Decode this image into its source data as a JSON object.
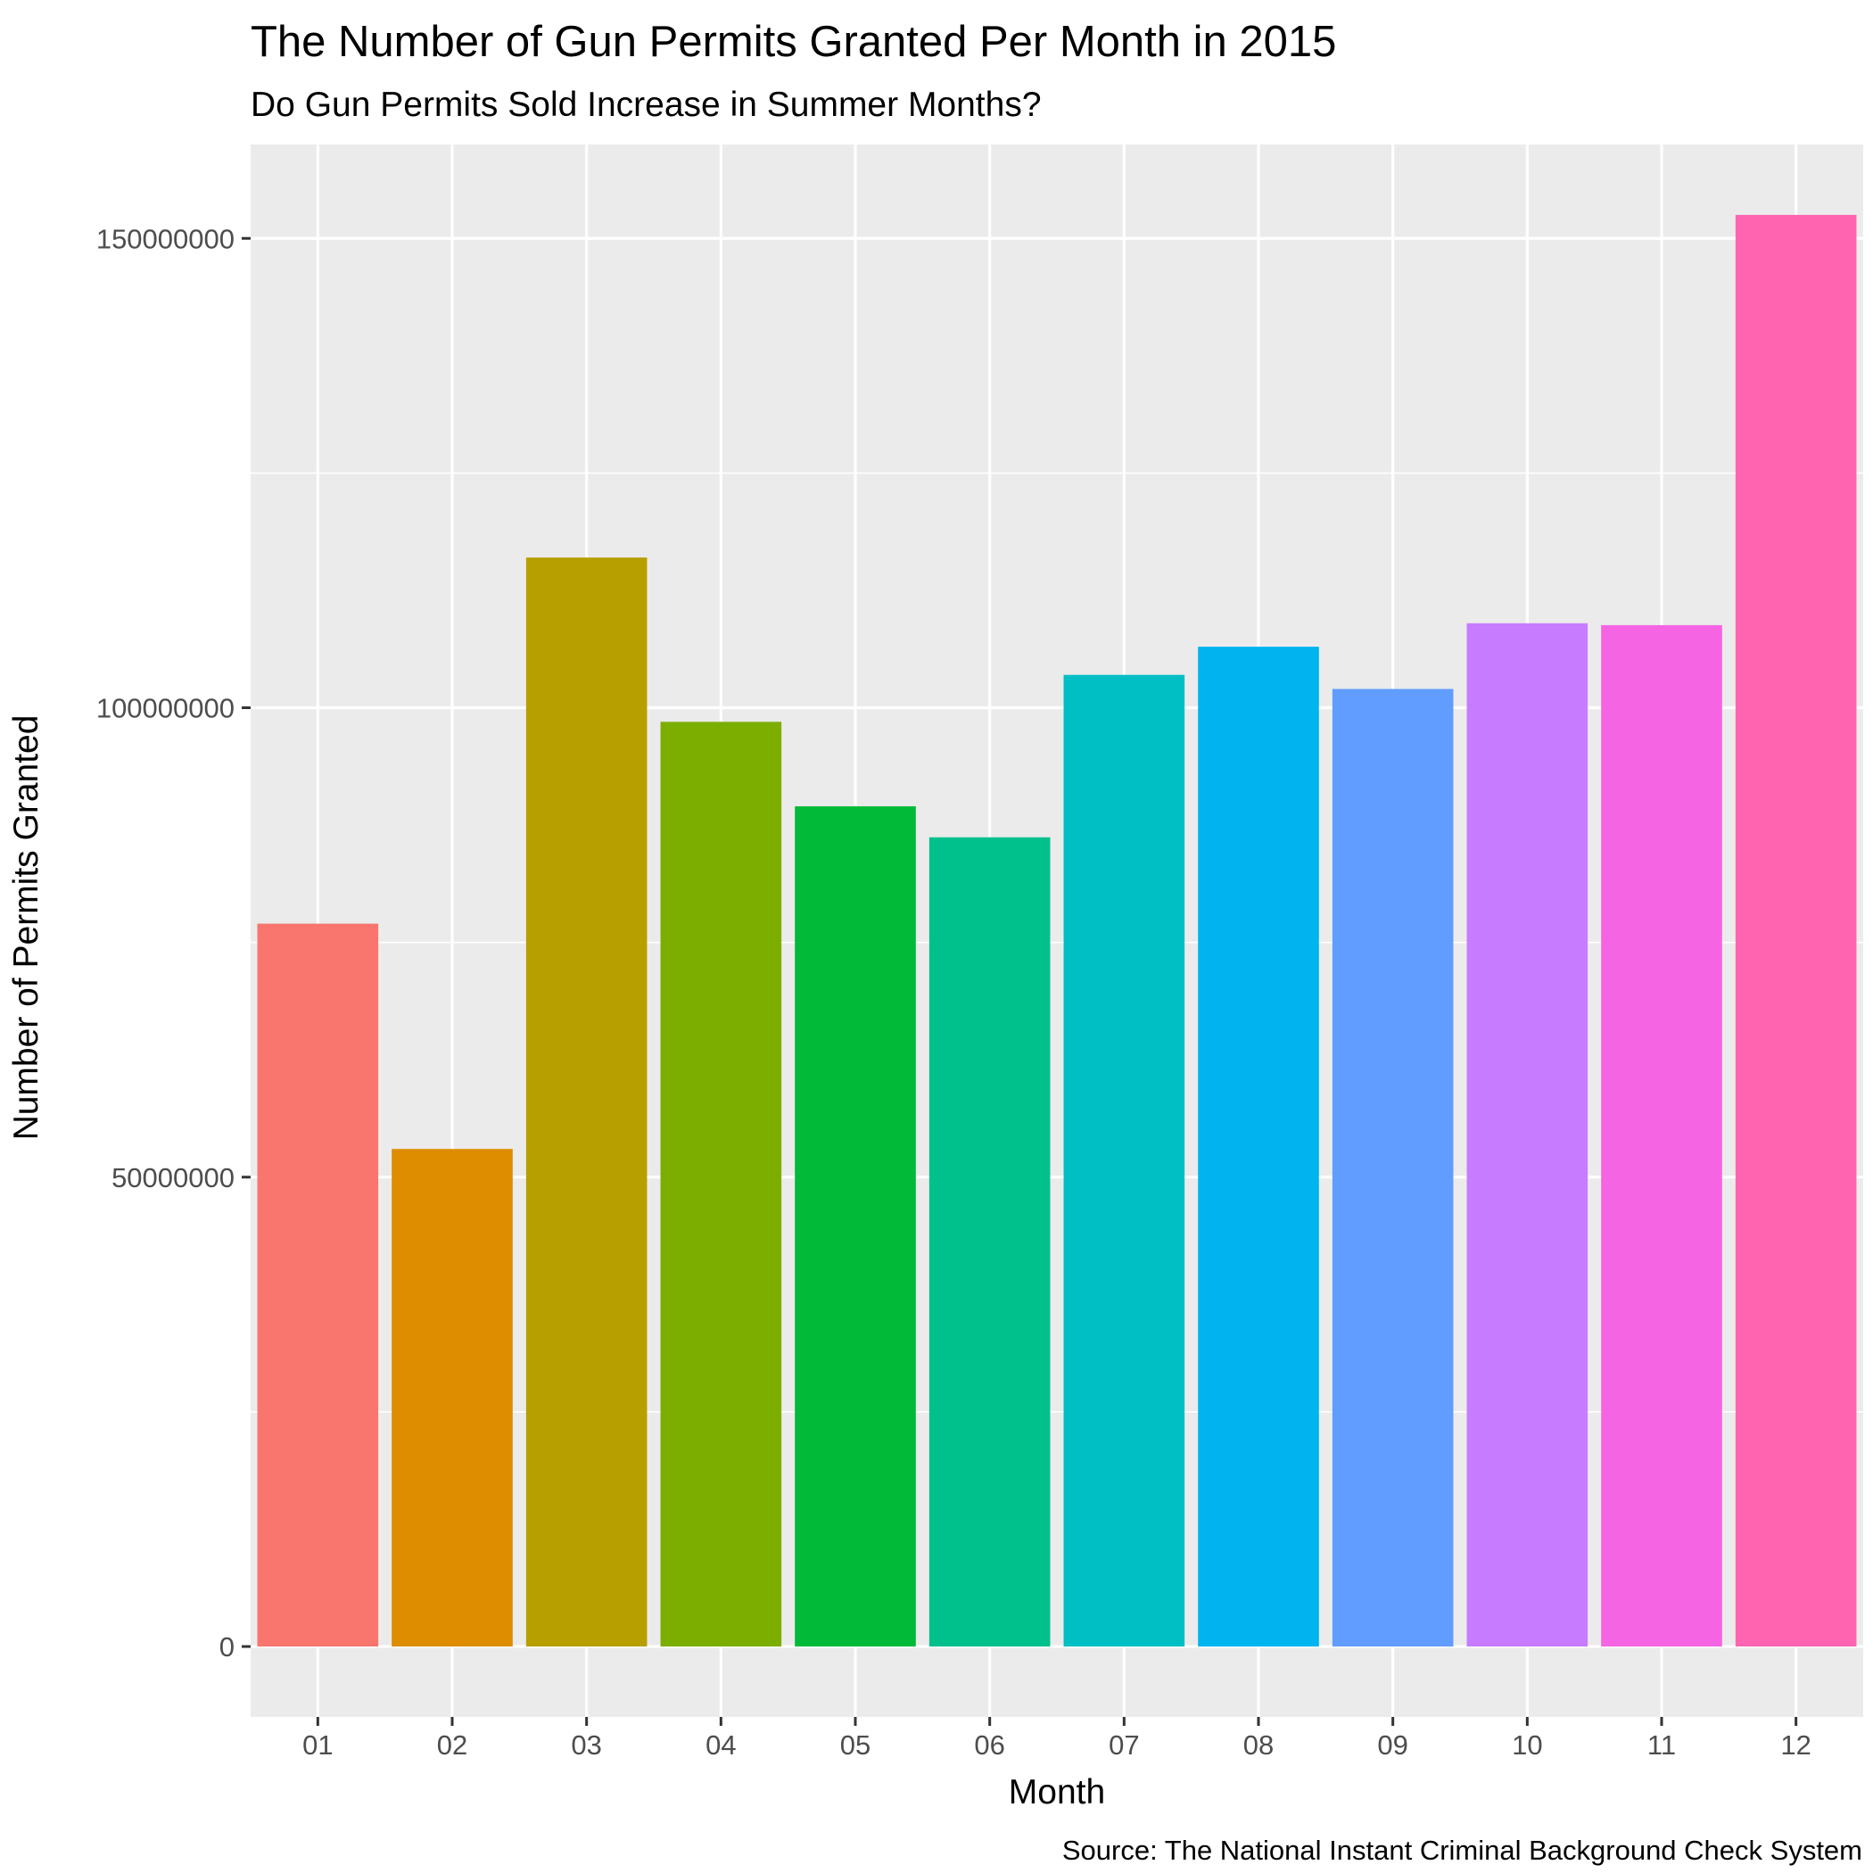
{
  "chart_data": {
    "type": "bar",
    "title": "The Number of Gun Permits Granted Per Month in 2015",
    "subtitle": "Do Gun Permits Sold Increase in Summer Months?",
    "xlabel": "Month",
    "ylabel": "Number of Permits Granted",
    "caption": "Source: The National Instant Criminal Background Check System",
    "categories": [
      "01",
      "02",
      "03",
      "04",
      "05",
      "06",
      "07",
      "08",
      "09",
      "10",
      "11",
      "12"
    ],
    "values": [
      77000000,
      53000000,
      116000000,
      98500000,
      89500000,
      86200000,
      103500000,
      106500000,
      102000000,
      109000000,
      108800000,
      152500000
    ],
    "colors": [
      "#F8766D",
      "#DE8C00",
      "#B79F00",
      "#7CAE00",
      "#00BA38",
      "#00C08B",
      "#00BFC4",
      "#00B4F0",
      "#619CFF",
      "#C77CFF",
      "#F564E3",
      "#FF64B0"
    ],
    "ylim": [
      -7500000,
      160000000
    ],
    "yticks": [
      0,
      50000000,
      100000000,
      150000000
    ],
    "ytick_labels": [
      "0",
      "50000000",
      "100000000",
      "150000000"
    ],
    "grid": true,
    "legend": "none",
    "panel_background": "#EBEBEB"
  }
}
